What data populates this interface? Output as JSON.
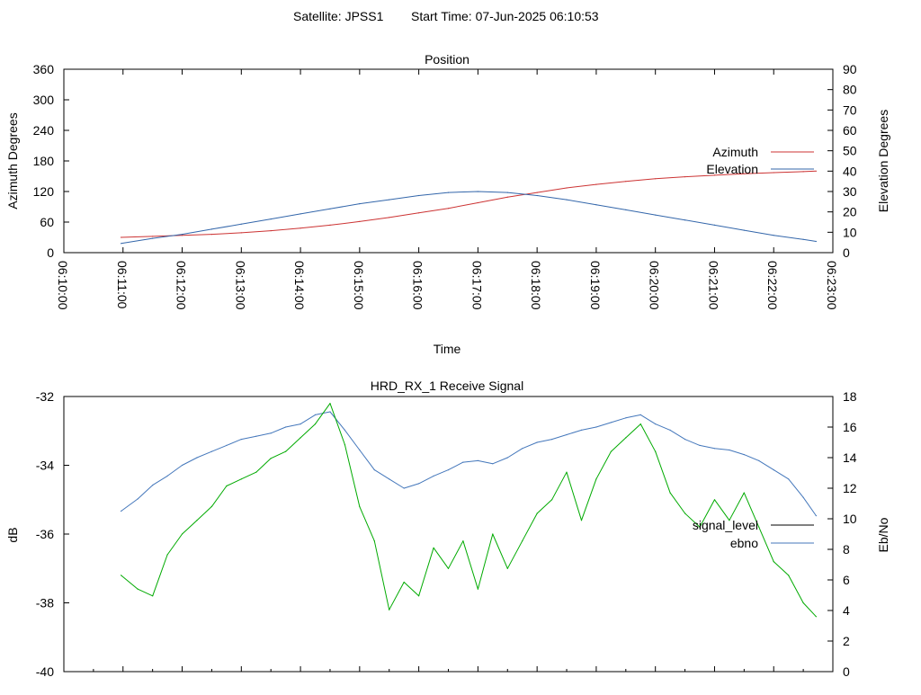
{
  "header": {
    "satellite": "Satellite: JPSS1",
    "start_time": "Start Time: 07-Jun-2025 06:10:53"
  },
  "colors": {
    "azimuth": "#cc3333",
    "elevation": "#3366aa",
    "signal_level_legend": "#000000",
    "signal_level_trace": "#00aa00",
    "ebno": "#4477bb"
  },
  "chart_data": [
    {
      "type": "line",
      "title": "Position",
      "xlabel": "Time",
      "ylabel": "Azimuth Degrees",
      "y2label": "Elevation Degrees",
      "x_ticks": [
        "06:10:00",
        "06:11:00",
        "06:12:00",
        "06:13:00",
        "06:14:00",
        "06:15:00",
        "06:16:00",
        "06:17:00",
        "06:18:00",
        "06:19:00",
        "06:20:00",
        "06:21:00",
        "06:22:00",
        "06:23:00"
      ],
      "xlim": [
        "06:10:00",
        "06:23:00"
      ],
      "ylim": [
        0,
        360
      ],
      "y_ticks": [
        0,
        60,
        120,
        180,
        240,
        300,
        360
      ],
      "y2lim": [
        0,
        90
      ],
      "y2_ticks": [
        0,
        10,
        20,
        30,
        40,
        50,
        60,
        70,
        80,
        90
      ],
      "legend_position": "top-right",
      "series": [
        {
          "name": "Azimuth",
          "axis": "left",
          "x": [
            "06:10:58",
            "06:11:30",
            "06:12:00",
            "06:12:30",
            "06:13:00",
            "06:13:30",
            "06:14:00",
            "06:14:30",
            "06:15:00",
            "06:15:30",
            "06:16:00",
            "06:16:30",
            "06:17:00",
            "06:17:30",
            "06:18:00",
            "06:18:30",
            "06:19:00",
            "06:19:30",
            "06:20:00",
            "06:20:30",
            "06:21:00",
            "06:21:30",
            "06:22:00",
            "06:22:30",
            "06:22:43"
          ],
          "values": [
            30,
            32,
            34,
            36,
            39,
            43,
            48,
            54,
            61,
            69,
            78,
            87,
            98,
            109,
            118,
            127,
            134,
            140,
            145,
            149,
            152,
            155,
            157,
            159,
            160
          ]
        },
        {
          "name": "Elevation",
          "axis": "right",
          "x": [
            "06:10:58",
            "06:11:30",
            "06:12:00",
            "06:12:30",
            "06:13:00",
            "06:13:30",
            "06:14:00",
            "06:14:30",
            "06:15:00",
            "06:15:30",
            "06:16:00",
            "06:16:30",
            "06:17:00",
            "06:17:30",
            "06:18:00",
            "06:18:30",
            "06:19:00",
            "06:19:30",
            "06:20:00",
            "06:20:30",
            "06:21:00",
            "06:21:30",
            "06:22:00",
            "06:22:30",
            "06:22:43"
          ],
          "values": [
            4.5,
            7,
            9,
            11.5,
            14,
            16.5,
            19,
            21.5,
            24,
            26,
            28,
            29.5,
            30,
            29.5,
            28,
            26,
            23.5,
            21,
            18.5,
            16,
            13.5,
            11,
            8.5,
            6.5,
            5.5
          ]
        }
      ]
    },
    {
      "type": "line",
      "title": "HRD_RX_1 Receive Signal",
      "ylabel": "dB",
      "y2label": "Eb/No",
      "ylim": [
        -40,
        -32
      ],
      "y_ticks": [
        -40,
        -38,
        -36,
        -34,
        -32
      ],
      "y2lim": [
        0,
        18
      ],
      "y2_ticks": [
        0,
        2,
        4,
        6,
        8,
        10,
        12,
        14,
        16,
        18
      ],
      "xlim": [
        "06:10:00",
        "06:23:00"
      ],
      "x_ticks_count": 27,
      "legend_position": "right",
      "legend": [
        "signal_level",
        "ebno"
      ],
      "series": [
        {
          "name": "ebno",
          "axis": "right",
          "x": [
            "06:10:58",
            "06:11:15",
            "06:11:30",
            "06:11:45",
            "06:12:00",
            "06:12:15",
            "06:12:30",
            "06:12:45",
            "06:13:00",
            "06:13:15",
            "06:13:30",
            "06:13:45",
            "06:14:00",
            "06:14:15",
            "06:14:30",
            "06:14:45",
            "06:15:00",
            "06:15:15",
            "06:15:30",
            "06:15:45",
            "06:16:00",
            "06:16:15",
            "06:16:30",
            "06:16:45",
            "06:17:00",
            "06:17:15",
            "06:17:30",
            "06:17:45",
            "06:18:00",
            "06:18:15",
            "06:18:30",
            "06:18:45",
            "06:19:00",
            "06:19:15",
            "06:19:30",
            "06:19:45",
            "06:20:00",
            "06:20:15",
            "06:20:30",
            "06:20:45",
            "06:21:00",
            "06:21:15",
            "06:21:30",
            "06:21:45",
            "06:22:00",
            "06:22:15",
            "06:22:30",
            "06:22:43"
          ],
          "values": [
            10.5,
            11.3,
            12.2,
            12.8,
            13.5,
            14.0,
            14.4,
            14.8,
            15.2,
            15.4,
            15.6,
            16.0,
            16.2,
            16.8,
            17.0,
            15.8,
            14.5,
            13.2,
            12.6,
            12.0,
            12.3,
            12.8,
            13.2,
            13.7,
            13.8,
            13.6,
            14.0,
            14.6,
            15.0,
            15.2,
            15.5,
            15.8,
            16.0,
            16.3,
            16.6,
            16.8,
            16.2,
            15.8,
            15.2,
            14.8,
            14.6,
            14.5,
            14.2,
            13.8,
            13.2,
            12.6,
            11.4,
            10.2
          ]
        },
        {
          "name": "signal_level",
          "axis": "left",
          "x": [
            "06:10:58",
            "06:11:15",
            "06:11:30",
            "06:11:45",
            "06:12:00",
            "06:12:15",
            "06:12:30",
            "06:12:45",
            "06:13:00",
            "06:13:15",
            "06:13:30",
            "06:13:45",
            "06:14:00",
            "06:14:15",
            "06:14:30",
            "06:14:45",
            "06:15:00",
            "06:15:15",
            "06:15:30",
            "06:15:45",
            "06:16:00",
            "06:16:15",
            "06:16:30",
            "06:16:45",
            "06:17:00",
            "06:17:15",
            "06:17:30",
            "06:17:45",
            "06:18:00",
            "06:18:15",
            "06:18:30",
            "06:18:45",
            "06:19:00",
            "06:19:15",
            "06:19:30",
            "06:19:45",
            "06:20:00",
            "06:20:15",
            "06:20:30",
            "06:20:45",
            "06:21:00",
            "06:21:15",
            "06:21:30",
            "06:21:45",
            "06:22:00",
            "06:22:15",
            "06:22:30",
            "06:22:43"
          ],
          "values": [
            -37.2,
            -37.6,
            -37.8,
            -36.6,
            -36.0,
            -35.6,
            -35.2,
            -34.6,
            -34.4,
            -34.2,
            -33.8,
            -33.6,
            -33.2,
            -32.8,
            -32.2,
            -33.4,
            -35.2,
            -36.2,
            -38.2,
            -37.4,
            -37.8,
            -36.4,
            -37.0,
            -36.2,
            -37.6,
            -36.0,
            -37.0,
            -36.2,
            -35.4,
            -35.0,
            -34.2,
            -35.6,
            -34.4,
            -33.6,
            -33.2,
            -32.8,
            -33.6,
            -34.8,
            -35.4,
            -35.8,
            -35.0,
            -35.6,
            -34.8,
            -35.8,
            -36.8,
            -37.2,
            -38.0,
            -38.4
          ]
        }
      ]
    }
  ]
}
